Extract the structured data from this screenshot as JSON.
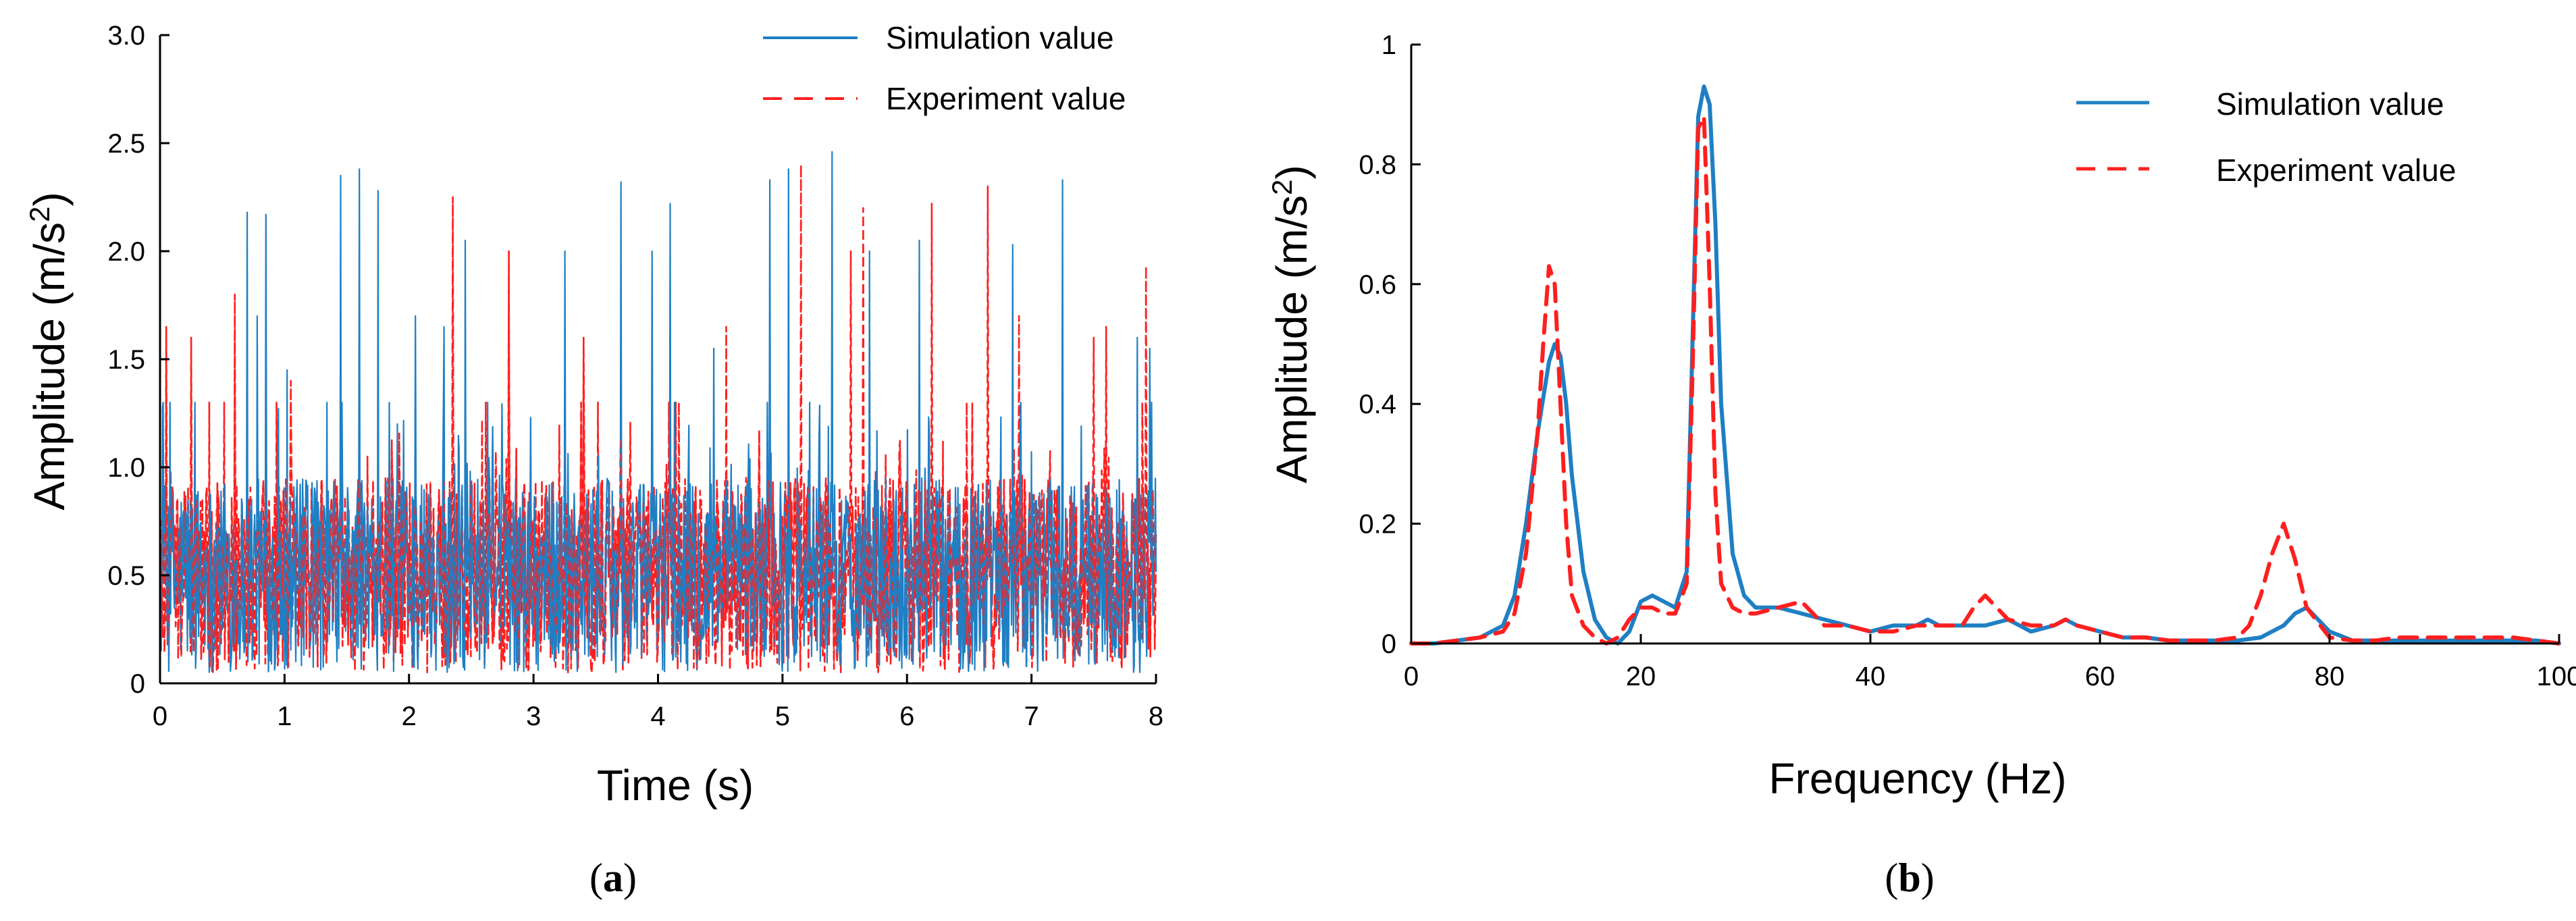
{
  "colors": {
    "simulation": "#1f7fc4",
    "experiment": "#ff1f1f",
    "axis": "#000000"
  },
  "chart_data": [
    {
      "type": "line",
      "panel_label": {
        "open": "(",
        "letter": "a",
        "close": ")"
      },
      "title": "",
      "xlabel": "Time (s)",
      "ylabel_prefix": "Amplitude (m/s",
      "ylabel_sup": "2",
      "ylabel_suffix": ")",
      "xlim": [
        0,
        8
      ],
      "ylim": [
        0,
        3.0
      ],
      "xticks": [
        0,
        1,
        2,
        3,
        4,
        5,
        6,
        7,
        8
      ],
      "xtick_labels": [
        "0",
        "1",
        "2",
        "3",
        "4",
        "5",
        "6",
        "7",
        "8"
      ],
      "yticks": [
        0,
        0.5,
        1.0,
        1.5,
        2.0,
        2.5,
        3.0
      ],
      "ytick_labels": [
        "0",
        "0.5",
        "1.0",
        "1.5",
        "2.0",
        "2.5",
        "3.0"
      ],
      "legend": [
        "Simulation value",
        "Experiment value"
      ],
      "legend_position": "top-right",
      "grid": false,
      "signal_generated": true,
      "signal_stats": {
        "n_points": 1600,
        "baseline": 0.5,
        "noise_amplitude": 0.45
      },
      "series": [
        {
          "name": "Simulation value",
          "style": "solid",
          "peaks": [
            [
              0.7,
              2.18
            ],
            [
              0.78,
              1.7
            ],
            [
              0.85,
              2.17
            ],
            [
              1.02,
              1.45
            ],
            [
              1.45,
              2.35
            ],
            [
              1.6,
              2.38
            ],
            [
              1.75,
              2.28
            ],
            [
              2.05,
              1.7
            ],
            [
              2.28,
              1.65
            ],
            [
              2.45,
              2.05
            ],
            [
              3.25,
              2.0
            ],
            [
              3.7,
              2.32
            ],
            [
              3.95,
              2.0
            ],
            [
              4.1,
              2.22
            ],
            [
              4.45,
              1.55
            ],
            [
              4.9,
              2.33
            ],
            [
              5.05,
              2.38
            ],
            [
              5.4,
              2.46
            ],
            [
              5.7,
              2.0
            ],
            [
              6.1,
              2.05
            ],
            [
              6.85,
              2.03
            ],
            [
              7.25,
              2.33
            ],
            [
              7.85,
              1.6
            ],
            [
              7.95,
              1.55
            ]
          ]
        },
        {
          "name": "Experiment value",
          "style": "dashed",
          "peaks": [
            [
              0.05,
              1.65
            ],
            [
              0.25,
              1.6
            ],
            [
              0.6,
              1.8
            ],
            [
              1.05,
              1.4
            ],
            [
              2.35,
              2.25
            ],
            [
              2.8,
              2.0
            ],
            [
              3.4,
              1.6
            ],
            [
              4.55,
              1.65
            ],
            [
              5.15,
              2.4
            ],
            [
              5.55,
              2.0
            ],
            [
              5.65,
              2.2
            ],
            [
              6.2,
              2.22
            ],
            [
              6.65,
              2.3
            ],
            [
              6.9,
              1.7
            ],
            [
              7.5,
              1.6
            ],
            [
              7.6,
              1.65
            ],
            [
              7.92,
              1.93
            ]
          ]
        }
      ]
    },
    {
      "type": "line",
      "panel_label": {
        "open": "(",
        "letter": "b",
        "close": ")"
      },
      "title": "",
      "xlabel": "Frequency (Hz)",
      "ylabel_prefix": "Amplitude (m/s",
      "ylabel_sup": "2",
      "ylabel_suffix": ")",
      "xlim": [
        0,
        100
      ],
      "ylim": [
        0,
        1
      ],
      "xticks": [
        0,
        20,
        40,
        60,
        80,
        100
      ],
      "xtick_labels": [
        "0",
        "20",
        "40",
        "60",
        "80",
        "100"
      ],
      "yticks": [
        0,
        0.2,
        0.4,
        0.6,
        0.8,
        1
      ],
      "ytick_labels": [
        "0",
        "0.2",
        "0.4",
        "0.6",
        "0.8",
        "1"
      ],
      "legend": [
        "Simulation value",
        "Experiment value"
      ],
      "legend_position": "top-right",
      "grid": false,
      "series": [
        {
          "name": "Simulation value",
          "style": "solid",
          "x": [
            0,
            2,
            4,
            6,
            8,
            9,
            10,
            11,
            12,
            12.5,
            13,
            13.5,
            14,
            15,
            16,
            17,
            18,
            19,
            20,
            21,
            22,
            23,
            24,
            24.5,
            25,
            25.5,
            26,
            26.5,
            27,
            28,
            29,
            30,
            32,
            34,
            36,
            38,
            40,
            42,
            44,
            45,
            46,
            48,
            50,
            52,
            54,
            56,
            57,
            58,
            60,
            62,
            64,
            66,
            68,
            70,
            72,
            74,
            76,
            77,
            78,
            80,
            82,
            84,
            86,
            88,
            90,
            92,
            94,
            96,
            98,
            100
          ],
          "y": [
            0.0,
            0.0,
            0.005,
            0.01,
            0.03,
            0.08,
            0.2,
            0.35,
            0.47,
            0.5,
            0.48,
            0.4,
            0.28,
            0.12,
            0.04,
            0.01,
            0.0,
            0.02,
            0.07,
            0.08,
            0.07,
            0.06,
            0.12,
            0.5,
            0.88,
            0.93,
            0.9,
            0.7,
            0.4,
            0.15,
            0.08,
            0.06,
            0.06,
            0.05,
            0.04,
            0.03,
            0.02,
            0.03,
            0.03,
            0.04,
            0.03,
            0.03,
            0.03,
            0.04,
            0.02,
            0.03,
            0.04,
            0.03,
            0.02,
            0.01,
            0.01,
            0.005,
            0.005,
            0.005,
            0.005,
            0.01,
            0.03,
            0.05,
            0.06,
            0.02,
            0.005,
            0.005,
            0.005,
            0.005,
            0.005,
            0.005,
            0.005,
            0.005,
            0.005,
            0.0
          ]
        },
        {
          "name": "Experiment value",
          "style": "dashed",
          "x": [
            0,
            2,
            4,
            6,
            8,
            9,
            10,
            11,
            11.5,
            12,
            12.5,
            13,
            13.5,
            14,
            15,
            16,
            17,
            18,
            19,
            20,
            21,
            22,
            23,
            24,
            24.5,
            25,
            25.5,
            26,
            26.5,
            27,
            28,
            29,
            30,
            32,
            34,
            35,
            36,
            38,
            40,
            42,
            44,
            46,
            48,
            49,
            50,
            51,
            52,
            54,
            56,
            57,
            58,
            60,
            62,
            64,
            66,
            68,
            70,
            72,
            73,
            74,
            75,
            76,
            77,
            78,
            80,
            82,
            84,
            86,
            88,
            90,
            92,
            94,
            96,
            98,
            100
          ],
          "y": [
            0.0,
            0.0,
            0.005,
            0.01,
            0.02,
            0.05,
            0.15,
            0.35,
            0.5,
            0.63,
            0.6,
            0.4,
            0.2,
            0.08,
            0.03,
            0.01,
            0.0,
            0.01,
            0.04,
            0.06,
            0.06,
            0.05,
            0.05,
            0.1,
            0.45,
            0.86,
            0.88,
            0.6,
            0.25,
            0.1,
            0.06,
            0.05,
            0.05,
            0.06,
            0.07,
            0.05,
            0.03,
            0.03,
            0.02,
            0.02,
            0.03,
            0.03,
            0.03,
            0.06,
            0.08,
            0.06,
            0.04,
            0.03,
            0.03,
            0.04,
            0.03,
            0.02,
            0.01,
            0.01,
            0.005,
            0.005,
            0.005,
            0.01,
            0.03,
            0.08,
            0.15,
            0.2,
            0.14,
            0.06,
            0.01,
            0.005,
            0.005,
            0.01,
            0.01,
            0.01,
            0.01,
            0.01,
            0.01,
            0.005,
            0.0
          ]
        }
      ]
    }
  ]
}
